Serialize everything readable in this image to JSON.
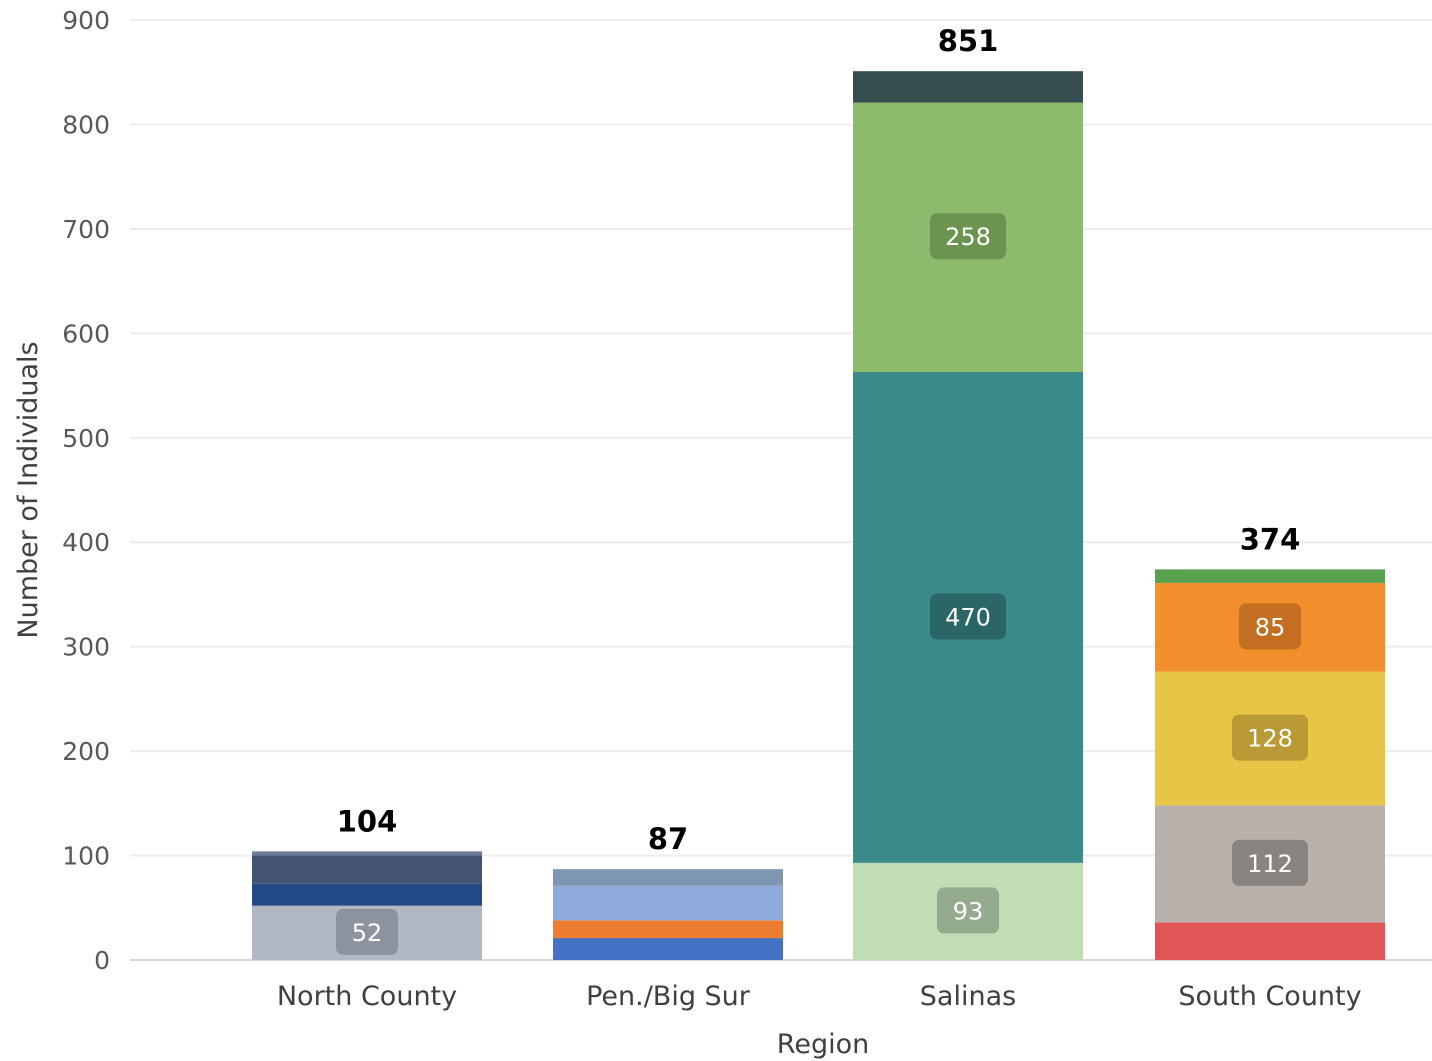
{
  "chart_data": {
    "type": "bar",
    "stacked": true,
    "title": "",
    "xlabel": "Region",
    "ylabel": "Number of Individuals",
    "ylim": [
      0,
      900
    ],
    "yticks": [
      0,
      100,
      200,
      300,
      400,
      500,
      600,
      700,
      800,
      900
    ],
    "grid": true,
    "legend": "none",
    "categories": [
      "North County",
      "Pen./Big Sur",
      "Salinas",
      "South County"
    ],
    "totals": [
      104,
      87,
      851,
      374
    ],
    "stacks": [
      {
        "category": "North County",
        "segments": [
          {
            "value": 52,
            "color": "#b1b8c3",
            "label": "52",
            "label_bg": "#8c939e"
          },
          {
            "value": 21,
            "color": "#234a86"
          },
          {
            "value": 27,
            "color": "#425470"
          },
          {
            "value": 4,
            "color": "#6b7d96"
          }
        ]
      },
      {
        "category": "Pen./Big Sur",
        "segments": [
          {
            "value": 21,
            "color": "#4472c4"
          },
          {
            "value": 17,
            "color": "#ed7d31"
          },
          {
            "value": 33,
            "color": "#8faadc"
          },
          {
            "value": 16,
            "color": "#7f96b2"
          }
        ]
      },
      {
        "category": "Salinas",
        "segments": [
          {
            "value": 93,
            "color": "#c0ddb6",
            "label": "93",
            "label_bg": "#95ab8e"
          },
          {
            "value": 470,
            "color": "#3a8a8a",
            "label": "470",
            "label_bg": "#2b6667"
          },
          {
            "value": 258,
            "color": "#8dbb6c",
            "label": "258",
            "label_bg": "#6b9451"
          },
          {
            "value": 30,
            "color": "#354d4f"
          }
        ]
      },
      {
        "category": "South County",
        "segments": [
          {
            "value": 36,
            "color": "#e05555"
          },
          {
            "value": 112,
            "color": "#b8b0ab",
            "label": "112",
            "label_bg": "#8a8480"
          },
          {
            "value": 128,
            "color": "#e9c547",
            "label": "128",
            "label_bg": "#b99a35"
          },
          {
            "value": 85,
            "color": "#f28e2b",
            "label": "85",
            "label_bg": "#c46e22"
          },
          {
            "value": 13,
            "color": "#59a14f"
          }
        ]
      }
    ]
  }
}
